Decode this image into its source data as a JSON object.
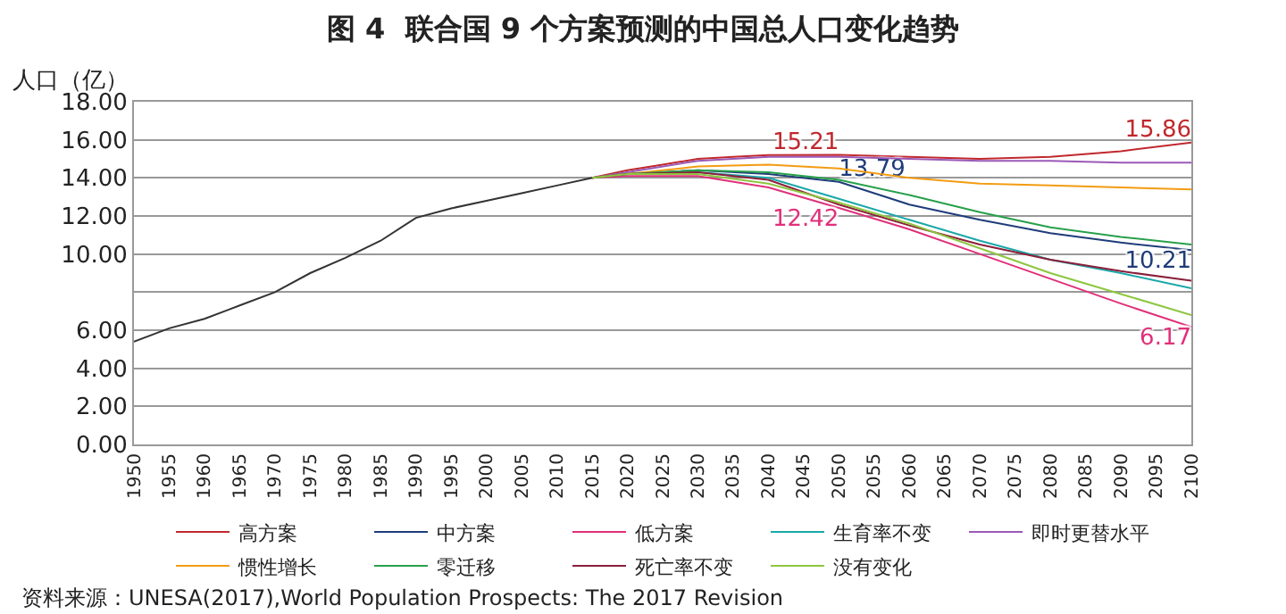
{
  "chart_data": {
    "type": "line",
    "title": "图 4  联合国 9 个方案预测的中国总人口变化趋势",
    "ylabel": "人口（亿）",
    "xlim": [
      1950,
      2100
    ],
    "xticks": [
      1950,
      1955,
      1960,
      1965,
      1970,
      1975,
      1980,
      1985,
      1990,
      1995,
      2000,
      2005,
      2010,
      2015,
      2020,
      2025,
      2030,
      2035,
      2040,
      2045,
      2050,
      2055,
      2060,
      2065,
      2070,
      2075,
      2080,
      2085,
      2090,
      2095,
      2100
    ],
    "ylim": [
      0,
      18
    ],
    "yticks": [
      {
        "value": 0,
        "label": "0.00"
      },
      {
        "value": 2,
        "label": "2.00"
      },
      {
        "value": 4,
        "label": "4.00"
      },
      {
        "value": 6,
        "label": "6.00"
      },
      {
        "value": 8,
        "label": null
      },
      {
        "value": 10,
        "label": "10.00"
      },
      {
        "value": 12,
        "label": "12.00"
      },
      {
        "value": 14,
        "label": "14.00"
      },
      {
        "value": 16,
        "label": "16.00"
      },
      {
        "value": 18,
        "label": "18.00"
      }
    ],
    "grid": "y",
    "legend": "bottom",
    "marker": "none",
    "line_style": "solid",
    "series": [
      {
        "color": "#333333",
        "x": [
          1950,
          1955,
          1960,
          1965,
          1970,
          1975,
          1980,
          1985,
          1990,
          1995,
          2000,
          2005,
          2010,
          2015
        ],
        "values": [
          5.4,
          6.1,
          6.6,
          7.3,
          8.0,
          9.0,
          9.8,
          10.7,
          11.9,
          12.4,
          12.8,
          13.2,
          13.6,
          14.0
        ]
      },
      {
        "name": "高方案",
        "color": "#c0282d",
        "x": [
          2015,
          2020,
          2025,
          2030,
          2035,
          2040,
          2050,
          2060,
          2070,
          2080,
          2090,
          2100
        ],
        "values": [
          14.0,
          14.4,
          14.7,
          15.0,
          15.1,
          15.2,
          15.21,
          15.1,
          15.0,
          15.1,
          15.4,
          15.86
        ],
        "value_labels": [
          null,
          null,
          null,
          null,
          null,
          null,
          "15.21",
          null,
          null,
          null,
          null,
          "15.86"
        ]
      },
      {
        "name": "中方案",
        "color": "#1f3c7a",
        "x": [
          2015,
          2020,
          2030,
          2040,
          2050,
          2060,
          2070,
          2080,
          2090,
          2100
        ],
        "values": [
          14.0,
          14.2,
          14.4,
          14.2,
          13.79,
          12.6,
          11.8,
          11.1,
          10.6,
          10.21
        ],
        "value_labels": [
          null,
          null,
          null,
          null,
          "13.79",
          null,
          null,
          null,
          null,
          "10.21"
        ]
      },
      {
        "name": "低方案",
        "color": "#e0307a",
        "x": [
          2015,
          2020,
          2030,
          2040,
          2050,
          2060,
          2070,
          2080,
          2090,
          2100
        ],
        "values": [
          14.0,
          14.1,
          14.1,
          13.5,
          12.42,
          11.3,
          10.0,
          8.7,
          7.4,
          6.17
        ],
        "value_labels": [
          null,
          null,
          null,
          null,
          "12.42",
          null,
          null,
          null,
          null,
          "6.17"
        ]
      },
      {
        "name": "生育率不变",
        "color": "#1aa7a8",
        "x": [
          2015,
          2020,
          2030,
          2040,
          2050,
          2060,
          2070,
          2080,
          2090,
          2100
        ],
        "values": [
          14.0,
          14.2,
          14.3,
          14.0,
          12.9,
          11.8,
          10.7,
          9.7,
          9.0,
          8.2
        ]
      },
      {
        "name": "即时更替水平",
        "color": "#9b59b6",
        "x": [
          2015,
          2020,
          2030,
          2040,
          2050,
          2060,
          2070,
          2080,
          2090,
          2100
        ],
        "values": [
          14.0,
          14.3,
          14.9,
          15.1,
          15.1,
          15.0,
          14.9,
          14.9,
          14.8,
          14.8
        ]
      },
      {
        "name": "惯性增长",
        "color": "#f39c12",
        "x": [
          2015,
          2020,
          2030,
          2040,
          2050,
          2060,
          2070,
          2080,
          2090,
          2100
        ],
        "values": [
          14.0,
          14.2,
          14.6,
          14.7,
          14.5,
          14.0,
          13.7,
          13.6,
          13.5,
          13.4
        ]
      },
      {
        "name": "零迁移",
        "color": "#27a04a",
        "x": [
          2015,
          2020,
          2030,
          2040,
          2050,
          2060,
          2070,
          2080,
          2090,
          2100
        ],
        "values": [
          14.0,
          14.2,
          14.4,
          14.3,
          13.9,
          13.1,
          12.2,
          11.4,
          10.9,
          10.5
        ]
      },
      {
        "name": "死亡率不变",
        "color": "#8b1f3a",
        "x": [
          2015,
          2020,
          2030,
          2040,
          2050,
          2060,
          2070,
          2080,
          2090,
          2100
        ],
        "values": [
          14.0,
          14.2,
          14.3,
          13.9,
          12.6,
          11.5,
          10.5,
          9.7,
          9.1,
          8.6
        ]
      },
      {
        "name": "没有变化",
        "color": "#8dc63f",
        "x": [
          2015,
          2020,
          2030,
          2040,
          2050,
          2060,
          2070,
          2080,
          2090,
          2100
        ],
        "values": [
          14.0,
          14.2,
          14.2,
          13.7,
          12.7,
          11.6,
          10.3,
          9.0,
          7.9,
          6.8
        ]
      }
    ],
    "annotations": [
      "资料来源：UNESA(2017),World Population Prospects: The 2017 Revision"
    ]
  }
}
